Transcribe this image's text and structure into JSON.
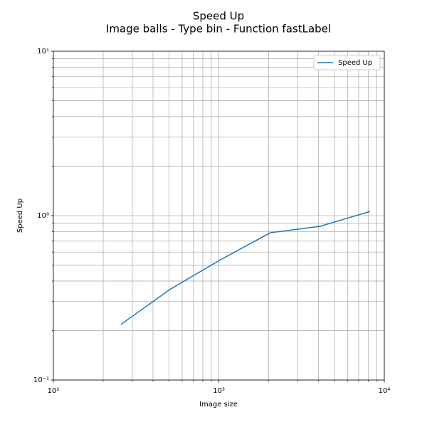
{
  "chart_data": {
    "type": "line",
    "title": "Speed Up",
    "subtitle": "Image balls - Type bin - Function fastLabel",
    "xlabel": "Image size",
    "ylabel": "Speed Up",
    "xscale": "log",
    "yscale": "log",
    "x": [
      256,
      512,
      1024,
      2048,
      4096,
      8192
    ],
    "series": [
      {
        "name": "Speed Up",
        "color": "#1f77b4",
        "values": [
          0.218,
          0.358,
          0.539,
          0.787,
          0.861,
          1.06
        ]
      }
    ],
    "xlim": [
      100,
      10000
    ],
    "ylim": [
      0.1,
      10
    ],
    "xticks": [
      {
        "value": 100,
        "label": "10²"
      },
      {
        "value": 1000,
        "label": "10³"
      },
      {
        "value": 10000,
        "label": "10⁴"
      }
    ],
    "yticks": [
      {
        "value": 0.1,
        "label": "10⁻¹"
      },
      {
        "value": 1,
        "label": "10⁰"
      },
      {
        "value": 10,
        "label": "10¹"
      }
    ],
    "xminorticks": [
      200,
      300,
      400,
      500,
      600,
      700,
      800,
      900,
      2000,
      3000,
      4000,
      5000,
      6000,
      7000,
      8000,
      9000
    ],
    "yminorticks": [
      0.2,
      0.3,
      0.4,
      0.5,
      0.6,
      0.7,
      0.8,
      0.9,
      2,
      3,
      4,
      5,
      6,
      7,
      8,
      9
    ],
    "grid": true,
    "legend": "upper right"
  }
}
